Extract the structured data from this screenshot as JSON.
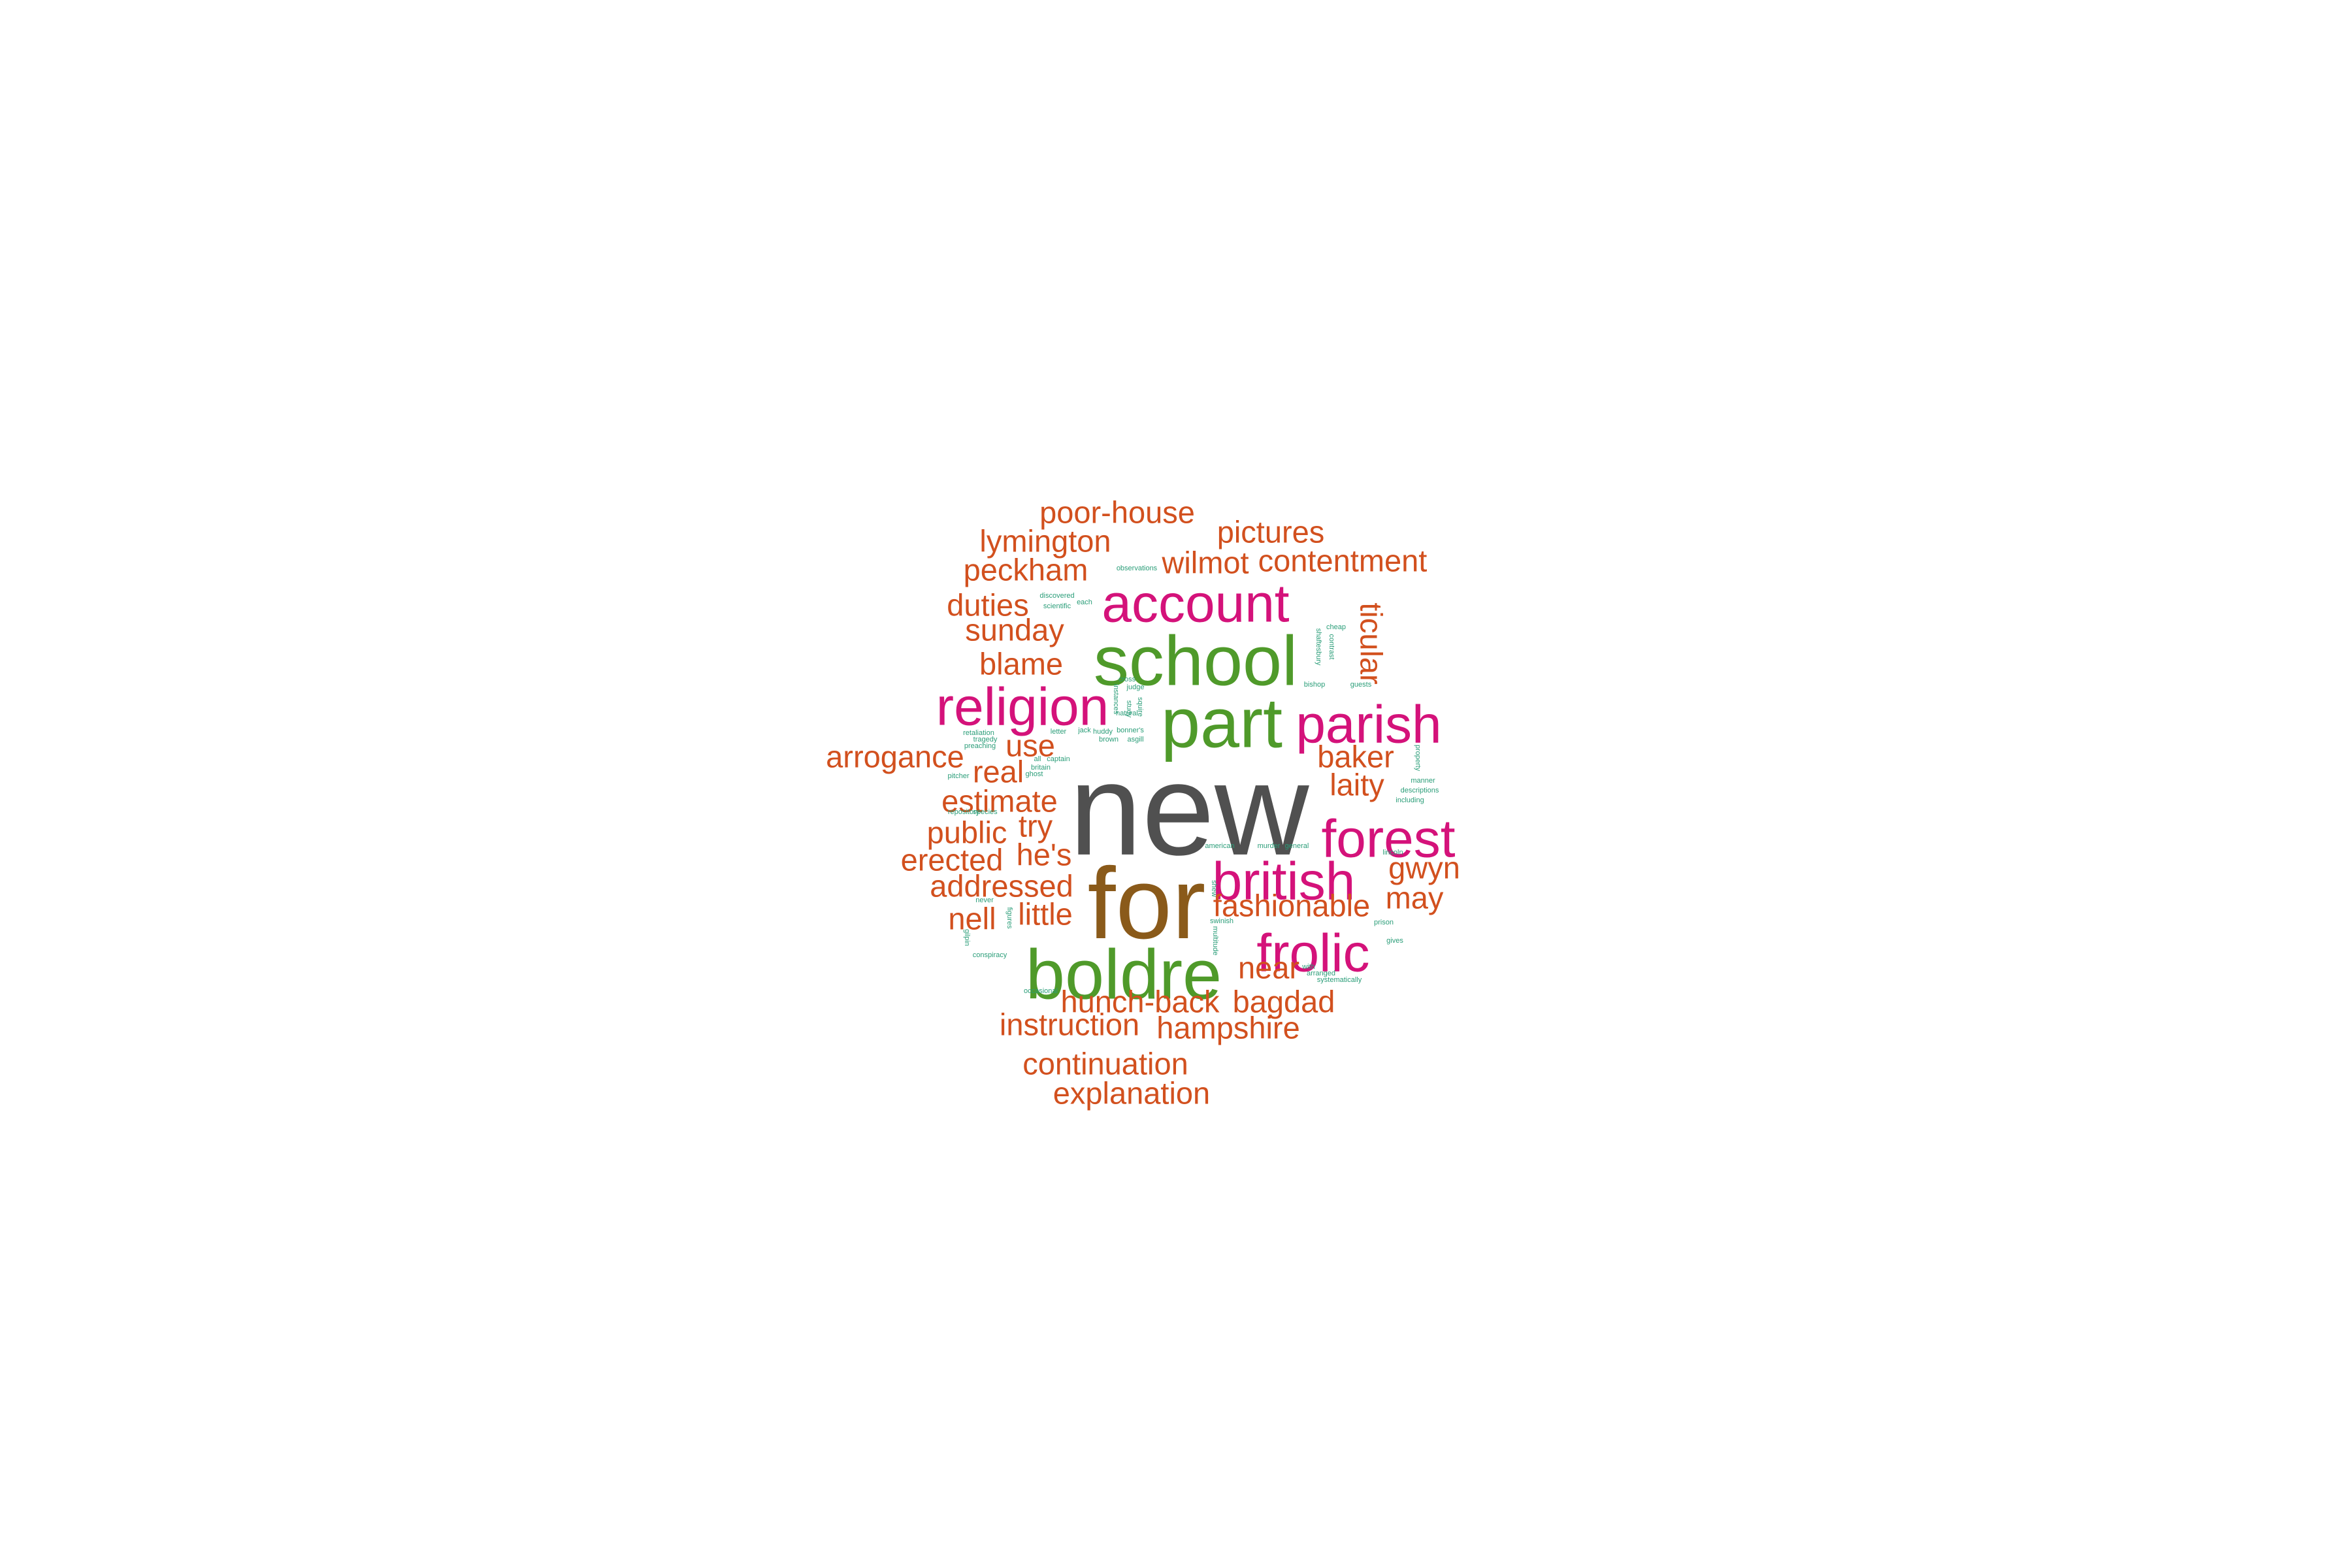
{
  "word_cloud": {
    "colors": {
      "top": "#505050",
      "second": "#8a5a1a",
      "green": "#4f9a2a",
      "magenta": "#d4127a",
      "orange": "#d2501e",
      "teal": "#2a9d78"
    },
    "words": [
      {
        "text": "new",
        "color": "top",
        "weight": 100
      },
      {
        "text": "for",
        "color": "second",
        "weight": 92
      },
      {
        "text": "boldre",
        "color": "green",
        "weight": 72
      },
      {
        "text": "school",
        "color": "green",
        "weight": 72
      },
      {
        "text": "part",
        "color": "green",
        "weight": 72
      },
      {
        "text": "religion",
        "color": "magenta",
        "weight": 55
      },
      {
        "text": "account",
        "color": "magenta",
        "weight": 55
      },
      {
        "text": "parish",
        "color": "magenta",
        "weight": 55
      },
      {
        "text": "forest",
        "color": "magenta",
        "weight": 55
      },
      {
        "text": "british",
        "color": "magenta",
        "weight": 55
      },
      {
        "text": "frolic",
        "color": "magenta",
        "weight": 55
      },
      {
        "text": "poor-house",
        "color": "orange",
        "weight": 32
      },
      {
        "text": "lymington",
        "color": "orange",
        "weight": 32
      },
      {
        "text": "pictures",
        "color": "orange",
        "weight": 32
      },
      {
        "text": "peckham",
        "color": "orange",
        "weight": 32
      },
      {
        "text": "wilmot",
        "color": "orange",
        "weight": 32
      },
      {
        "text": "contentment",
        "color": "orange",
        "weight": 32
      },
      {
        "text": "duties",
        "color": "orange",
        "weight": 32
      },
      {
        "text": "sunday",
        "color": "orange",
        "weight": 32
      },
      {
        "text": "blame",
        "color": "orange",
        "weight": 32
      },
      {
        "text": "ticular",
        "color": "orange",
        "weight": 32
      },
      {
        "text": "use",
        "color": "orange",
        "weight": 32
      },
      {
        "text": "arrogance",
        "color": "orange",
        "weight": 32
      },
      {
        "text": "real",
        "color": "orange",
        "weight": 32
      },
      {
        "text": "baker",
        "color": "orange",
        "weight": 32
      },
      {
        "text": "laity",
        "color": "orange",
        "weight": 32
      },
      {
        "text": "estimate",
        "color": "orange",
        "weight": 32
      },
      {
        "text": "public",
        "color": "orange",
        "weight": 32
      },
      {
        "text": "try",
        "color": "orange",
        "weight": 32
      },
      {
        "text": "erected",
        "color": "orange",
        "weight": 32
      },
      {
        "text": "he's",
        "color": "orange",
        "weight": 32
      },
      {
        "text": "addressed",
        "color": "orange",
        "weight": 32
      },
      {
        "text": "gwyn",
        "color": "orange",
        "weight": 32
      },
      {
        "text": "may",
        "color": "orange",
        "weight": 32
      },
      {
        "text": "fashionable",
        "color": "orange",
        "weight": 32
      },
      {
        "text": "nell",
        "color": "orange",
        "weight": 32
      },
      {
        "text": "little",
        "color": "orange",
        "weight": 32
      },
      {
        "text": "near",
        "color": "orange",
        "weight": 32
      },
      {
        "text": "hunch-back",
        "color": "orange",
        "weight": 32
      },
      {
        "text": "bagdad",
        "color": "orange",
        "weight": 32
      },
      {
        "text": "instruction",
        "color": "orange",
        "weight": 32
      },
      {
        "text": "hampshire",
        "color": "orange",
        "weight": 32
      },
      {
        "text": "continuation",
        "color": "orange",
        "weight": 32
      },
      {
        "text": "explanation",
        "color": "orange",
        "weight": 32
      },
      {
        "text": "observations",
        "color": "teal",
        "weight": 5
      },
      {
        "text": "discovered",
        "color": "teal",
        "weight": 5
      },
      {
        "text": "each",
        "color": "teal",
        "weight": 5
      },
      {
        "text": "scientific",
        "color": "teal",
        "weight": 5
      },
      {
        "text": "cheap",
        "color": "teal",
        "weight": 5
      },
      {
        "text": "shaftesbury",
        "color": "teal",
        "weight": 5
      },
      {
        "text": "contrast",
        "color": "teal",
        "weight": 5
      },
      {
        "text": "cross",
        "color": "teal",
        "weight": 5
      },
      {
        "text": "judge",
        "color": "teal",
        "weight": 5
      },
      {
        "text": "study",
        "color": "teal",
        "weight": 5
      },
      {
        "text": "squire",
        "color": "teal",
        "weight": 5
      },
      {
        "text": "bishop",
        "color": "teal",
        "weight": 5
      },
      {
        "text": "guests",
        "color": "teal",
        "weight": 5
      },
      {
        "text": "natural",
        "color": "teal",
        "weight": 5
      },
      {
        "text": "instances",
        "color": "teal",
        "weight": 5
      },
      {
        "text": "jack",
        "color": "teal",
        "weight": 5
      },
      {
        "text": "bonner's",
        "color": "teal",
        "weight": 5
      },
      {
        "text": "letter",
        "color": "teal",
        "weight": 5
      },
      {
        "text": "huddy",
        "color": "teal",
        "weight": 5
      },
      {
        "text": "brown",
        "color": "teal",
        "weight": 5
      },
      {
        "text": "asgill",
        "color": "teal",
        "weight": 5
      },
      {
        "text": "retaliation",
        "color": "teal",
        "weight": 5
      },
      {
        "text": "tragedy",
        "color": "teal",
        "weight": 5
      },
      {
        "text": "preaching",
        "color": "teal",
        "weight": 5
      },
      {
        "text": "all",
        "color": "teal",
        "weight": 5
      },
      {
        "text": "captain",
        "color": "teal",
        "weight": 5
      },
      {
        "text": "britain",
        "color": "teal",
        "weight": 5
      },
      {
        "text": "ghost",
        "color": "teal",
        "weight": 5
      },
      {
        "text": "pitcher",
        "color": "teal",
        "weight": 5
      },
      {
        "text": "repository",
        "color": "teal",
        "weight": 5
      },
      {
        "text": "species",
        "color": "teal",
        "weight": 5
      },
      {
        "text": "property",
        "color": "teal",
        "weight": 5
      },
      {
        "text": "manner",
        "color": "teal",
        "weight": 5
      },
      {
        "text": "descriptions",
        "color": "teal",
        "weight": 5
      },
      {
        "text": "including",
        "color": "teal",
        "weight": 5
      },
      {
        "text": "american",
        "color": "teal",
        "weight": 5
      },
      {
        "text": "murder",
        "color": "teal",
        "weight": 5
      },
      {
        "text": "general",
        "color": "teal",
        "weight": 5
      },
      {
        "text": "lincoln",
        "color": "teal",
        "weight": 5
      },
      {
        "text": "never",
        "color": "teal",
        "weight": 5
      },
      {
        "text": "figures",
        "color": "teal",
        "weight": 5
      },
      {
        "text": "swinish",
        "color": "teal",
        "weight": 5
      },
      {
        "text": "multitude",
        "color": "teal",
        "weight": 5
      },
      {
        "text": "prison",
        "color": "teal",
        "weight": 5
      },
      {
        "text": "gives",
        "color": "teal",
        "weight": 5
      },
      {
        "text": "gilpin",
        "color": "teal",
        "weight": 5
      },
      {
        "text": "conspiracy",
        "color": "teal",
        "weight": 5
      },
      {
        "text": "with",
        "color": "teal",
        "weight": 5
      },
      {
        "text": "arranged",
        "color": "teal",
        "weight": 5
      },
      {
        "text": "systematically",
        "color": "teal",
        "weight": 5
      },
      {
        "text": "occasional",
        "color": "teal",
        "weight": 5
      },
      {
        "text": "shew",
        "color": "teal",
        "weight": 5
      }
    ]
  }
}
